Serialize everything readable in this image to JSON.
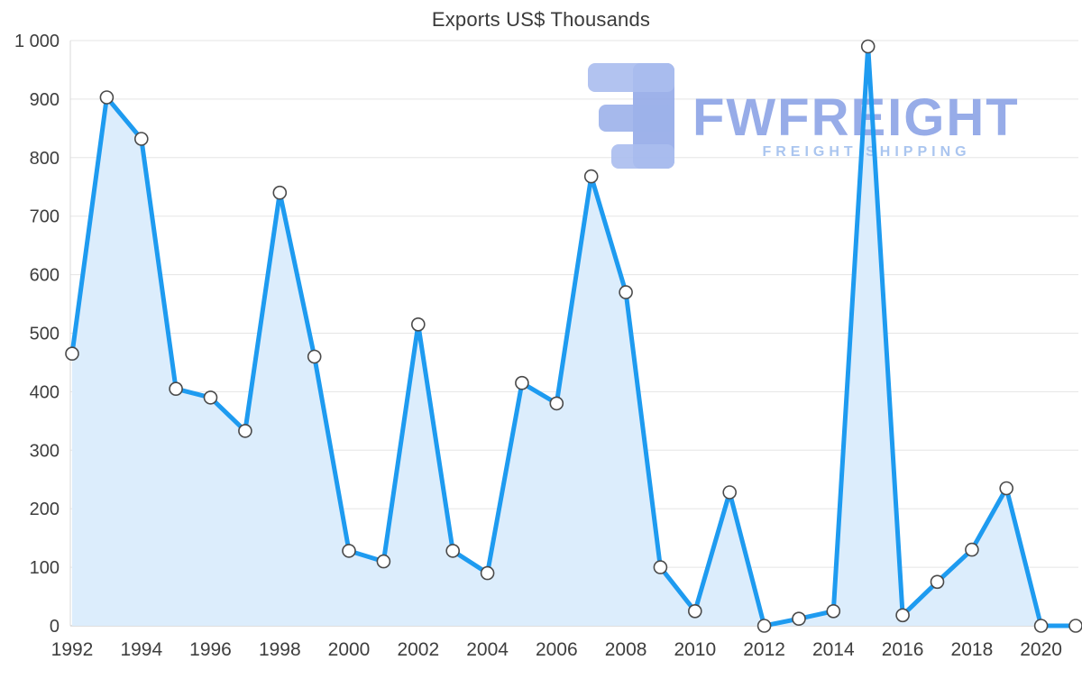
{
  "page": {
    "background": "#ffffff"
  },
  "chart": {
    "title": "Exports US$ Thousands"
  },
  "watermark": {
    "brand": "FWFREIGHT",
    "tagline": "FREIGHT SHIPPING",
    "brand_color": "#8ca4e6",
    "tagline_color": "#a6c2ef",
    "logo_color_light": "#aabcee",
    "logo_color_dark": "#93aae8"
  },
  "chart_data": {
    "type": "area",
    "title": "Exports US$ Thousands",
    "x": [
      1992,
      1993,
      1994,
      1995,
      1996,
      1997,
      1998,
      1999,
      2000,
      2001,
      2002,
      2003,
      2004,
      2005,
      2006,
      2007,
      2008,
      2009,
      2010,
      2011,
      2012,
      2013,
      2014,
      2015,
      2016,
      2017,
      2018,
      2019,
      2020,
      2021
    ],
    "values": [
      465,
      903,
      832,
      405,
      390,
      333,
      740,
      460,
      128,
      110,
      515,
      128,
      90,
      415,
      380,
      768,
      570,
      100,
      25,
      228,
      0,
      12,
      25,
      990,
      18,
      75,
      130,
      235,
      0,
      0
    ],
    "xlim": [
      1992,
      2021
    ],
    "ylim": [
      0,
      1000
    ],
    "x_tick_labels": [
      "1992",
      "1994",
      "1996",
      "1998",
      "2000",
      "2002",
      "2004",
      "2006",
      "2008",
      "2010",
      "2012",
      "2014",
      "2016",
      "2018",
      "2020"
    ],
    "y_ticks": [
      0,
      100,
      200,
      300,
      400,
      500,
      600,
      700,
      800,
      900,
      1000
    ],
    "y_tick_labels": [
      "0",
      "100",
      "200",
      "300",
      "400",
      "500",
      "600",
      "700",
      "800",
      "900",
      "1 000"
    ],
    "grid": true,
    "legend": "none",
    "line_color": "#1e9bf0",
    "line_width": 5,
    "fill_color": "#dcedfc",
    "grid_color": "#e5e5e5",
    "axis_line_color": "#bfbfbf",
    "marker": {
      "fill": "#ffffff",
      "stroke": "#4a4a4a",
      "radius": 7
    }
  }
}
